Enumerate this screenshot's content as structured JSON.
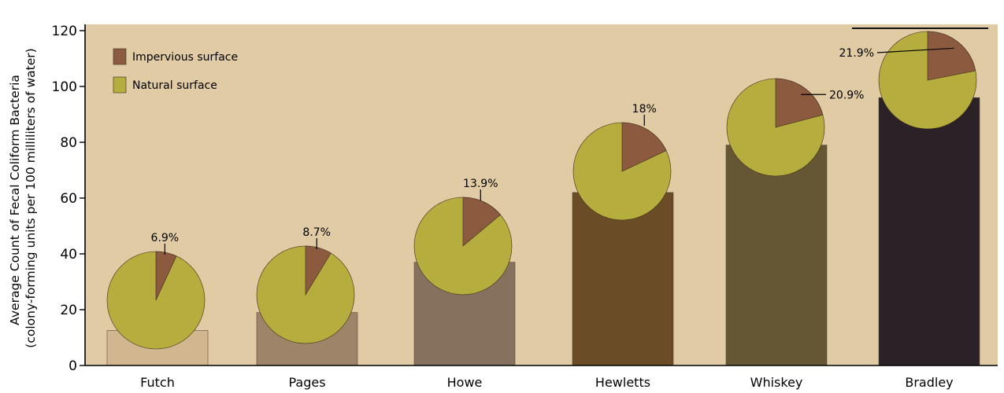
{
  "chart_data": {
    "type": "bar",
    "ylabel_line1": "Average Count of Fecal Coliform Bacteria",
    "ylabel_line2": "(colony-forming units per 100 milliliters of water)",
    "ylim": [
      0,
      120
    ],
    "yticks": [
      0,
      20,
      40,
      60,
      80,
      100,
      120
    ],
    "grid": false,
    "legend_position": "top-left",
    "categories": [
      "Futch",
      "Pages",
      "Howe",
      "Hewletts",
      "Whiskey",
      "Bradley"
    ],
    "values": [
      12.5,
      19,
      37,
      62,
      79,
      96
    ],
    "bar_colors": [
      "#d2b690",
      "#9e8468",
      "#86705e",
      "#6a4c26",
      "#655634",
      "#2a2226"
    ],
    "pie_series": [
      {
        "name": "Impervious surface",
        "color": "#8b5a3f"
      },
      {
        "name": "Natural surface",
        "color": "#b5ad3d"
      }
    ],
    "impervious_percent": [
      6.9,
      8.7,
      13.9,
      18,
      20.9,
      21.9
    ],
    "impervious_labels": [
      "6.9%",
      "8.7%",
      "13.9%",
      "18%",
      "20.9%",
      "21.9%"
    ]
  },
  "colors": {
    "plot_background": "#e0cba4",
    "axis": "#000000",
    "pie_outline": "#3a2a1a"
  }
}
